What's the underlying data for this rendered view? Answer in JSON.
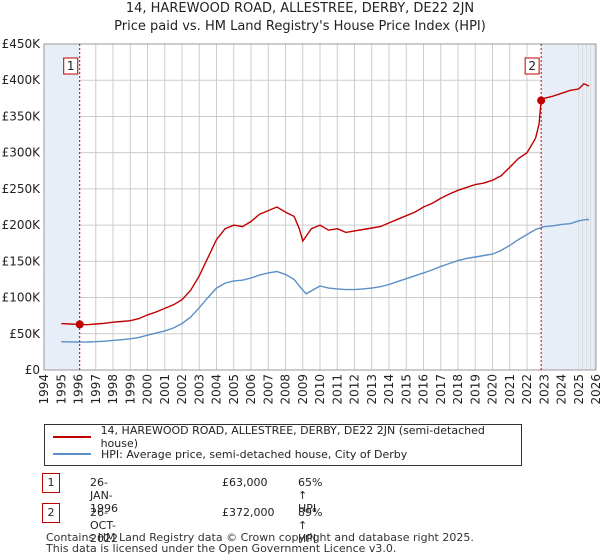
{
  "title_line1": "14, HAREWOOD ROAD, ALLESTREE, DERBY, DE22 2JN",
  "title_line2": "Price paid vs. HM Land Registry's House Price Index (HPI)",
  "chart_data": {
    "type": "line",
    "x_ticks": [
      "1994",
      "1995",
      "1996",
      "1997",
      "1998",
      "1999",
      "2000",
      "2001",
      "2002",
      "2003",
      "2004",
      "2005",
      "2006",
      "2007",
      "2008",
      "2009",
      "2010",
      "2011",
      "2012",
      "2013",
      "2014",
      "2015",
      "2016",
      "2017",
      "2018",
      "2019",
      "2020",
      "2021",
      "2022",
      "2023",
      "2024",
      "2025",
      "2026"
    ],
    "y_ticks": [
      "£0",
      "£50K",
      "£100K",
      "£150K",
      "£200K",
      "£250K",
      "£300K",
      "£350K",
      "£400K",
      "£450K"
    ],
    "xlim": [
      1994,
      2026
    ],
    "ylim": [
      0,
      450000
    ],
    "series": [
      {
        "name": "14, HAREWOOD ROAD, ALLESTREE, DERBY, DE22 2JN (semi-detached house)",
        "color": "#c00000",
        "points": [
          [
            1995.0,
            64000
          ],
          [
            1995.5,
            63500
          ],
          [
            1996.07,
            63000
          ],
          [
            1996.5,
            62500
          ],
          [
            1997.0,
            63500
          ],
          [
            1997.5,
            64500
          ],
          [
            1998.0,
            66000
          ],
          [
            1998.5,
            67000
          ],
          [
            1999.0,
            68000
          ],
          [
            1999.5,
            71000
          ],
          [
            2000.0,
            76000
          ],
          [
            2000.5,
            80000
          ],
          [
            2001.0,
            85000
          ],
          [
            2001.5,
            90000
          ],
          [
            2002.0,
            97000
          ],
          [
            2002.5,
            110000
          ],
          [
            2003.0,
            130000
          ],
          [
            2003.5,
            155000
          ],
          [
            2004.0,
            180000
          ],
          [
            2004.5,
            195000
          ],
          [
            2005.0,
            200000
          ],
          [
            2005.5,
            198000
          ],
          [
            2006.0,
            205000
          ],
          [
            2006.5,
            215000
          ],
          [
            2007.0,
            220000
          ],
          [
            2007.5,
            225000
          ],
          [
            2008.0,
            218000
          ],
          [
            2008.5,
            212000
          ],
          [
            2008.8,
            195000
          ],
          [
            2009.0,
            178000
          ],
          [
            2009.5,
            195000
          ],
          [
            2010.0,
            200000
          ],
          [
            2010.5,
            193000
          ],
          [
            2011.0,
            195000
          ],
          [
            2011.5,
            190000
          ],
          [
            2012.0,
            192000
          ],
          [
            2012.5,
            194000
          ],
          [
            2013.0,
            196000
          ],
          [
            2013.5,
            198000
          ],
          [
            2014.0,
            203000
          ],
          [
            2014.5,
            208000
          ],
          [
            2015.0,
            213000
          ],
          [
            2015.5,
            218000
          ],
          [
            2016.0,
            225000
          ],
          [
            2016.5,
            230000
          ],
          [
            2017.0,
            237000
          ],
          [
            2017.5,
            243000
          ],
          [
            2018.0,
            248000
          ],
          [
            2018.5,
            252000
          ],
          [
            2019.0,
            256000
          ],
          [
            2019.5,
            258000
          ],
          [
            2020.0,
            262000
          ],
          [
            2020.5,
            268000
          ],
          [
            2021.0,
            280000
          ],
          [
            2021.5,
            292000
          ],
          [
            2022.0,
            300000
          ],
          [
            2022.5,
            320000
          ],
          [
            2022.7,
            340000
          ],
          [
            2022.82,
            372000
          ],
          [
            2023.0,
            375000
          ],
          [
            2023.5,
            378000
          ],
          [
            2024.0,
            382000
          ],
          [
            2024.5,
            386000
          ],
          [
            2025.0,
            388000
          ],
          [
            2025.3,
            395000
          ],
          [
            2025.6,
            392000
          ]
        ]
      },
      {
        "name": "HPI: Average price, semi-detached house, City of Derby",
        "color": "#5b8fc7",
        "points": [
          [
            1995.0,
            39000
          ],
          [
            1995.5,
            38800
          ],
          [
            1996.0,
            38500
          ],
          [
            1996.5,
            38600
          ],
          [
            1997.0,
            39000
          ],
          [
            1997.5,
            39800
          ],
          [
            1998.0,
            40800
          ],
          [
            1998.5,
            41800
          ],
          [
            1999.0,
            43000
          ],
          [
            1999.5,
            45000
          ],
          [
            2000.0,
            48000
          ],
          [
            2000.5,
            51000
          ],
          [
            2001.0,
            54000
          ],
          [
            2001.5,
            58000
          ],
          [
            2002.0,
            64000
          ],
          [
            2002.5,
            73000
          ],
          [
            2003.0,
            86000
          ],
          [
            2003.5,
            100000
          ],
          [
            2004.0,
            113000
          ],
          [
            2004.5,
            120000
          ],
          [
            2005.0,
            123000
          ],
          [
            2005.5,
            124000
          ],
          [
            2006.0,
            127000
          ],
          [
            2006.5,
            131000
          ],
          [
            2007.0,
            134000
          ],
          [
            2007.5,
            136000
          ],
          [
            2008.0,
            132000
          ],
          [
            2008.5,
            125000
          ],
          [
            2008.9,
            113000
          ],
          [
            2009.2,
            105000
          ],
          [
            2009.7,
            112000
          ],
          [
            2010.0,
            116000
          ],
          [
            2010.5,
            113000
          ],
          [
            2011.0,
            112000
          ],
          [
            2011.5,
            111000
          ],
          [
            2012.0,
            111000
          ],
          [
            2012.5,
            112000
          ],
          [
            2013.0,
            113000
          ],
          [
            2013.5,
            115000
          ],
          [
            2014.0,
            118000
          ],
          [
            2014.5,
            122000
          ],
          [
            2015.0,
            126000
          ],
          [
            2015.5,
            130000
          ],
          [
            2016.0,
            134000
          ],
          [
            2016.5,
            138000
          ],
          [
            2017.0,
            143000
          ],
          [
            2017.5,
            147000
          ],
          [
            2018.0,
            151000
          ],
          [
            2018.5,
            154000
          ],
          [
            2019.0,
            156000
          ],
          [
            2019.5,
            158000
          ],
          [
            2020.0,
            160000
          ],
          [
            2020.5,
            165000
          ],
          [
            2021.0,
            172000
          ],
          [
            2021.5,
            180000
          ],
          [
            2022.0,
            187000
          ],
          [
            2022.5,
            194000
          ],
          [
            2022.82,
            196500
          ],
          [
            2023.0,
            198000
          ],
          [
            2023.5,
            199000
          ],
          [
            2024.0,
            201000
          ],
          [
            2024.5,
            202000
          ],
          [
            2025.0,
            206000
          ],
          [
            2025.5,
            208000
          ],
          [
            2025.6,
            207000
          ]
        ]
      }
    ],
    "sales": [
      {
        "label": "1",
        "x": 1996.07,
        "price": 63000
      },
      {
        "label": "2",
        "x": 2022.82,
        "price": 372000
      }
    ]
  },
  "legend": {
    "entry1": "14, HAREWOOD ROAD, ALLESTREE, DERBY, DE22 2JN (semi-detached house)",
    "entry2": "HPI: Average price, semi-detached house, City of Derby"
  },
  "transactions": [
    {
      "num": "1",
      "date": "26-JAN-1996",
      "price": "£63,000",
      "hpi": "65% ↑ HPI"
    },
    {
      "num": "2",
      "date": "26-OCT-2022",
      "price": "£372,000",
      "hpi": "89% ↑ HPI"
    }
  ],
  "footer_line1": "Contains HM Land Registry data © Crown copyright and database right 2025.",
  "footer_line2": "This data is licensed under the Open Government Licence v3.0.",
  "colors": {
    "property": "#c00000",
    "hpi": "#5b8fc7",
    "shade": "#e8eef8",
    "grid": "#cccccc"
  }
}
